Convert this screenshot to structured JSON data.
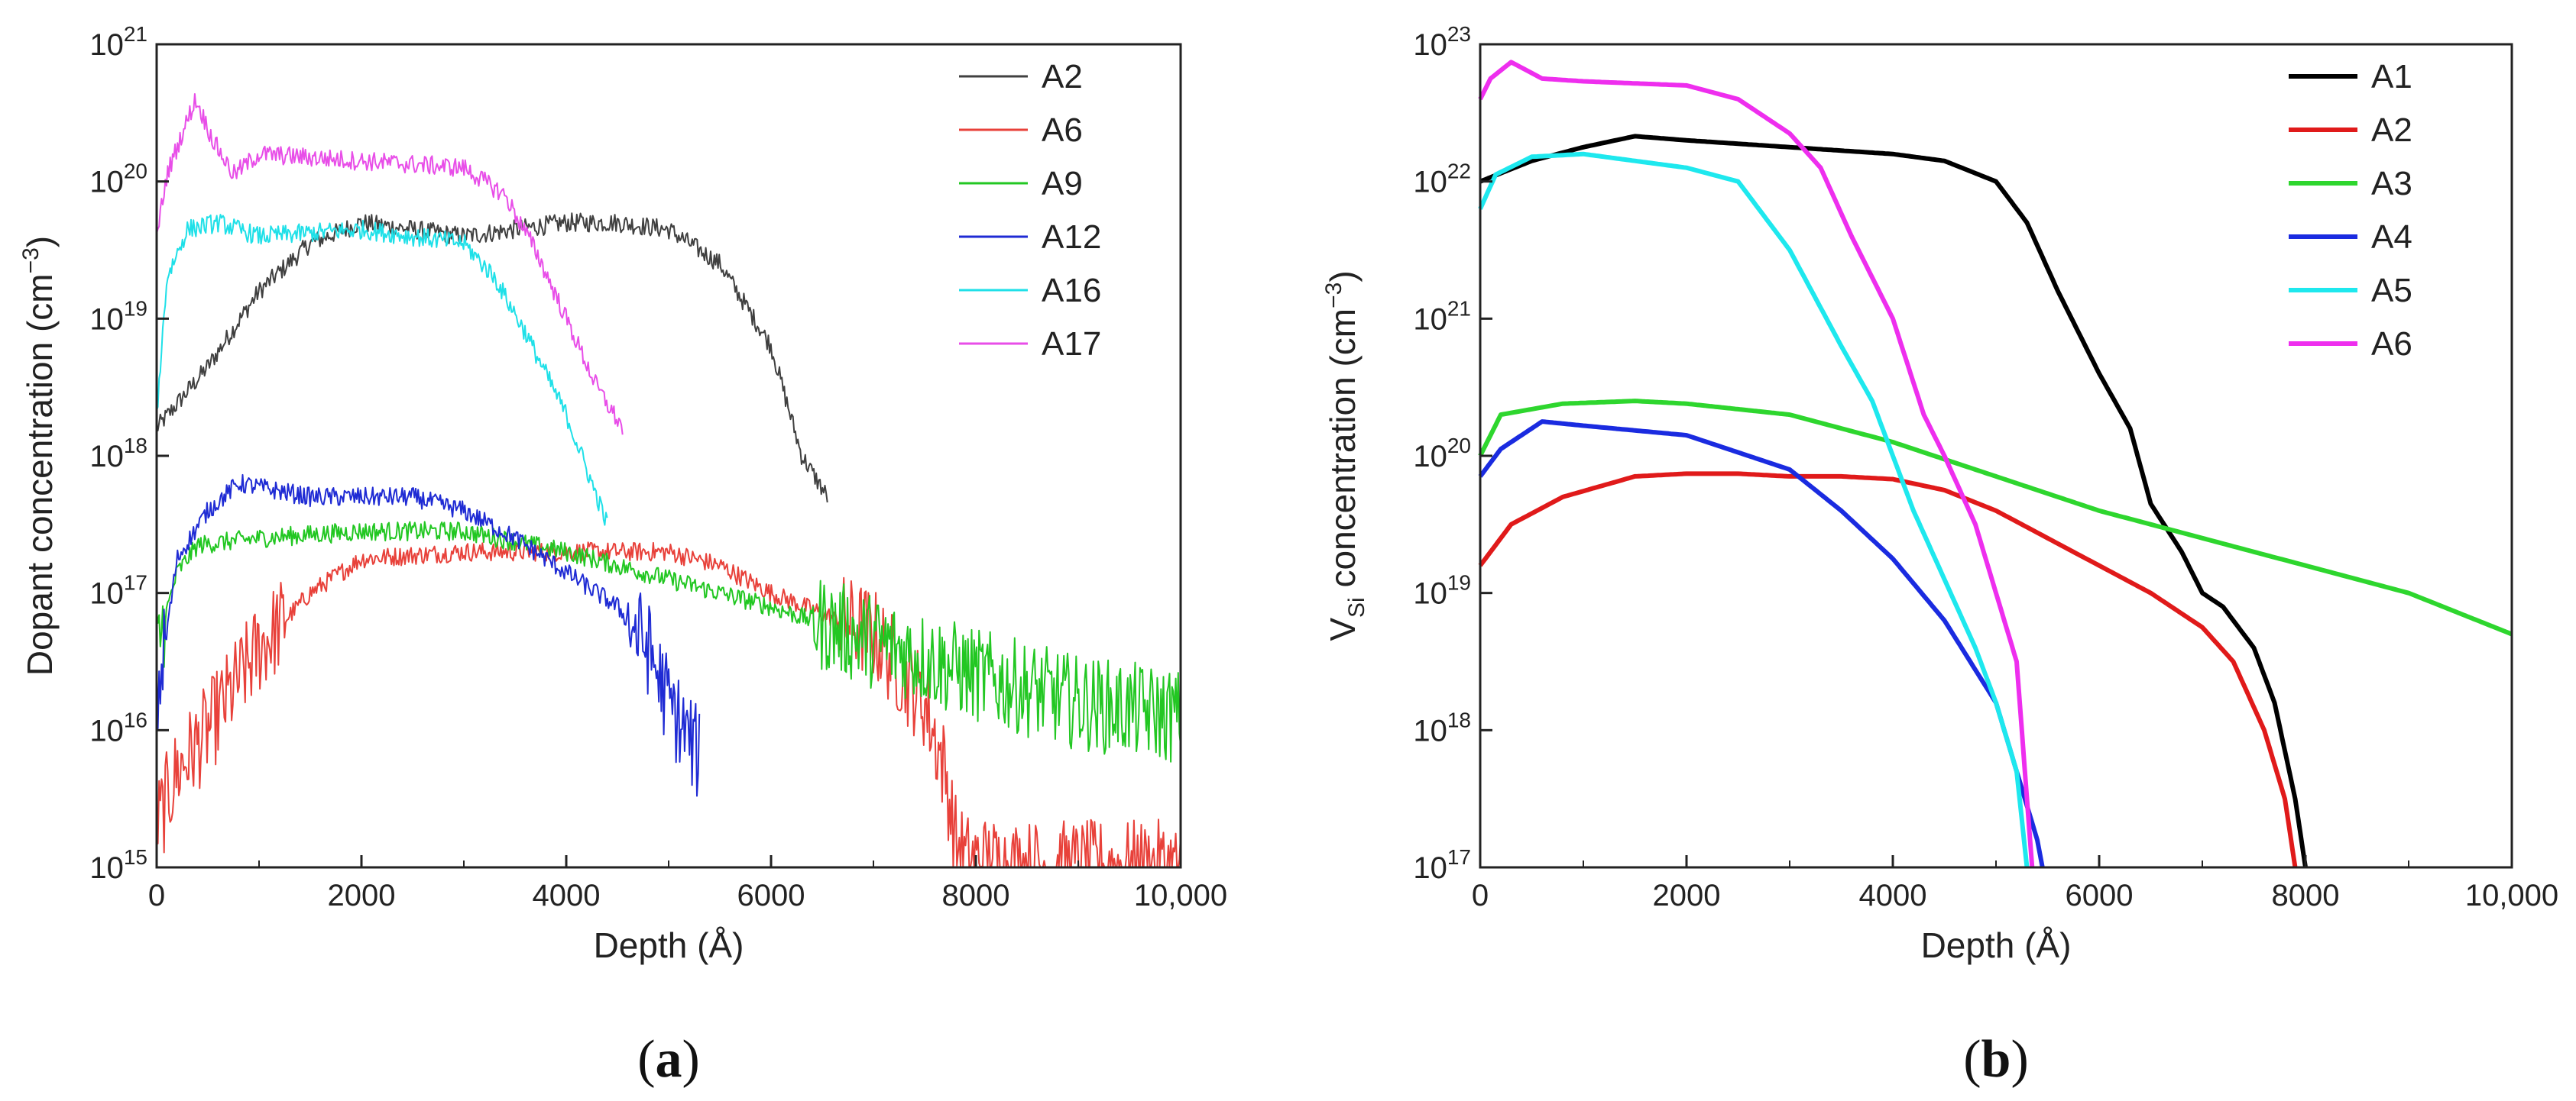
{
  "figure": {
    "panel_a": {
      "open": "(",
      "letter": "a",
      "close": ")"
    },
    "panel_b": {
      "open": "(",
      "letter": "b",
      "close": ")"
    }
  },
  "chart_data": [
    {
      "type": "line",
      "xlabel": "Depth (Å)",
      "ylabel_main": "Dopant concentration (cm",
      "ylabel_sup": "−3",
      "ylabel_close": ")",
      "yscale": "log",
      "xlim": [
        0,
        10000
      ],
      "ylim_exp": [
        15,
        21
      ],
      "x_ticks": [
        "0",
        "2000",
        "4000",
        "6000",
        "8000",
        "10,000"
      ],
      "x_tick_values": [
        0,
        2000,
        4000,
        6000,
        8000,
        10000
      ],
      "y_tick_base": "10",
      "y_tick_exps": [
        "15",
        "16",
        "17",
        "18",
        "19",
        "20",
        "21"
      ],
      "legend_position": "top-right",
      "noise": true,
      "series": [
        {
          "name": "A2",
          "color": "#404040",
          "x": [
            0,
            500,
            1000,
            1500,
            2000,
            2500,
            3000,
            3500,
            4000,
            4500,
            5000,
            5500,
            6000,
            6300,
            6550
          ],
          "y_exp": [
            18.2,
            18.65,
            19.2,
            19.55,
            19.7,
            19.65,
            19.6,
            19.65,
            19.7,
            19.7,
            19.65,
            19.4,
            18.8,
            18.0,
            17.7
          ]
        },
        {
          "name": "A6",
          "color": "#e8413a",
          "x": [
            0,
            200,
            500,
            1000,
            1500,
            2000,
            3000,
            4000,
            5000,
            5500,
            6000,
            6500,
            7000,
            7500,
            7700,
            7800,
            7900,
            8500,
            9000,
            9500,
            10000
          ],
          "y_exp": [
            15.3,
            15.7,
            16.0,
            16.6,
            17.0,
            17.25,
            17.3,
            17.3,
            17.3,
            17.2,
            17.0,
            16.85,
            16.7,
            16.2,
            15.7,
            15.2,
            15.05,
            15.0,
            15.0,
            15.0,
            15.0
          ]
        },
        {
          "name": "A9",
          "color": "#22c722",
          "x": [
            0,
            200,
            400,
            1000,
            2000,
            3000,
            4000,
            5000,
            6000,
            7000,
            8000,
            9000,
            10000
          ],
          "y_exp": [
            16.6,
            17.15,
            17.35,
            17.4,
            17.45,
            17.45,
            17.3,
            17.1,
            16.9,
            16.65,
            16.4,
            16.2,
            16.1
          ]
        },
        {
          "name": "A12",
          "color": "#1f2bd4",
          "x": [
            0,
            200,
            500,
            800,
            1500,
            2500,
            3000,
            3500,
            4000,
            4500,
            4800,
            5000,
            5300
          ],
          "y_exp": [
            16.2,
            17.25,
            17.6,
            17.8,
            17.7,
            17.7,
            17.6,
            17.4,
            17.15,
            16.9,
            16.6,
            16.2,
            15.8
          ]
        },
        {
          "name": "A16",
          "color": "#1fe0e8",
          "x": [
            0,
            100,
            300,
            600,
            1000,
            2000,
            3000,
            3300,
            3600,
            3800,
            4000,
            4200,
            4400
          ],
          "y_exp": [
            18.3,
            19.3,
            19.65,
            19.7,
            19.6,
            19.65,
            19.55,
            19.3,
            18.9,
            18.6,
            18.3,
            17.9,
            17.5
          ]
        },
        {
          "name": "A17",
          "color": "#e84ee8",
          "x": [
            0,
            100,
            250,
            380,
            550,
            750,
            1000,
            2000,
            3000,
            3400,
            3700,
            4000,
            4300,
            4550
          ],
          "y_exp": [
            19.6,
            20.05,
            20.35,
            20.6,
            20.3,
            20.05,
            20.2,
            20.15,
            20.1,
            19.9,
            19.5,
            19.0,
            18.5,
            18.2
          ]
        }
      ]
    },
    {
      "type": "line",
      "xlabel": "Depth (Å)",
      "ylabel_v": "V",
      "ylabel_sub": "Si",
      "ylabel_rest": " concentration (cm",
      "ylabel_sup": "−3",
      "ylabel_close": ")",
      "yscale": "log",
      "xlim": [
        0,
        10000
      ],
      "ylim_exp": [
        17,
        23
      ],
      "x_ticks": [
        "0",
        "2000",
        "4000",
        "6000",
        "8000",
        "10,000"
      ],
      "x_tick_values": [
        0,
        2000,
        4000,
        6000,
        8000,
        10000
      ],
      "y_tick_base": "10",
      "y_tick_exps": [
        "17",
        "18",
        "19",
        "20",
        "21",
        "22",
        "23"
      ],
      "legend_position": "top-right",
      "noise": false,
      "series": [
        {
          "name": "A1",
          "color": "#000000",
          "x": [
            0,
            500,
            1000,
            1500,
            2000,
            3000,
            4000,
            4500,
            5000,
            5300,
            5600,
            6000,
            6300,
            6500,
            6800,
            7000,
            7200,
            7500,
            7700,
            7900,
            8000
          ],
          "y_exp": [
            22.0,
            22.15,
            22.25,
            22.33,
            22.3,
            22.25,
            22.2,
            22.15,
            22.0,
            21.7,
            21.2,
            20.6,
            20.2,
            19.65,
            19.3,
            19.0,
            18.9,
            18.6,
            18.2,
            17.5,
            17.0
          ]
        },
        {
          "name": "A2",
          "color": "#e01a1a",
          "x": [
            0,
            300,
            800,
            1500,
            2000,
            2500,
            3000,
            3500,
            4000,
            4500,
            5000,
            5500,
            6000,
            6500,
            7000,
            7300,
            7600,
            7800,
            7900
          ],
          "y_exp": [
            19.2,
            19.5,
            19.7,
            19.85,
            19.87,
            19.87,
            19.85,
            19.85,
            19.83,
            19.75,
            19.6,
            19.4,
            19.2,
            19.0,
            18.75,
            18.5,
            18.0,
            17.5,
            17.0
          ]
        },
        {
          "name": "A3",
          "color": "#2ed62e",
          "x": [
            0,
            200,
            800,
            1500,
            2000,
            3000,
            4000,
            5000,
            6000,
            7000,
            8000,
            9000,
            10000
          ],
          "y_exp": [
            20.0,
            20.3,
            20.38,
            20.4,
            20.38,
            20.3,
            20.1,
            19.85,
            19.6,
            19.4,
            19.2,
            19.0,
            18.7
          ]
        },
        {
          "name": "A4",
          "color": "#1a2be0",
          "x": [
            0,
            200,
            600,
            1000,
            2000,
            3000,
            3500,
            4000,
            4500,
            5000,
            5200,
            5400,
            5450
          ],
          "y_exp": [
            19.85,
            20.05,
            20.25,
            20.22,
            20.15,
            19.9,
            19.6,
            19.25,
            18.8,
            18.2,
            17.7,
            17.2,
            17.0
          ]
        },
        {
          "name": "A5",
          "color": "#1ee8ee",
          "x": [
            0,
            150,
            500,
            1000,
            1500,
            2000,
            2500,
            3000,
            3500,
            3800,
            4000,
            4200,
            4500,
            4800,
            5000,
            5200,
            5300
          ],
          "y_exp": [
            21.8,
            22.05,
            22.18,
            22.2,
            22.15,
            22.1,
            22.0,
            21.5,
            20.8,
            20.4,
            20.0,
            19.6,
            19.1,
            18.6,
            18.2,
            17.7,
            17.0
          ]
        },
        {
          "name": "A6",
          "color": "#ee2eee",
          "x": [
            0,
            100,
            300,
            600,
            1000,
            2000,
            2500,
            3000,
            3300,
            3600,
            4000,
            4300,
            4500,
            4800,
            5000,
            5200,
            5350
          ],
          "y_exp": [
            22.6,
            22.75,
            22.87,
            22.75,
            22.73,
            22.7,
            22.6,
            22.35,
            22.1,
            21.6,
            21.0,
            20.3,
            20.0,
            19.5,
            19.0,
            18.5,
            17.0
          ]
        }
      ]
    }
  ]
}
